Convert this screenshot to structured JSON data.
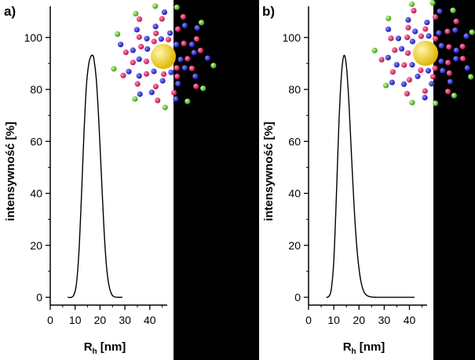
{
  "chart_data": [
    {
      "type": "line",
      "panel_label": "a)",
      "xlabel_main": "R",
      "xlabel_sub": "h",
      "xlabel_unit": " [nm]",
      "ylabel": "intensywność [%]",
      "xlim": [
        0,
        47
      ],
      "ylim": [
        -3,
        112
      ],
      "xticks": [
        0,
        10,
        20,
        30,
        40
      ],
      "yticks": [
        0,
        20,
        40,
        60,
        80,
        100
      ],
      "grid": false,
      "series": [
        {
          "x": [
            7.0,
            8.5,
            9.5,
            10.5,
            11.5,
            12.5,
            13.5,
            14.5,
            15.5,
            16.5,
            17.0,
            17.5,
            18.5,
            19.5,
            20.5,
            21.5,
            22.5,
            23.5,
            24.5,
            25.5,
            27.0,
            29.0
          ],
          "y": [
            0,
            0,
            1,
            5,
            17,
            38,
            62,
            81,
            90,
            93,
            93,
            92,
            84,
            68,
            48,
            28,
            13,
            5,
            1.5,
            0.3,
            0,
            0
          ]
        }
      ],
      "decoration": "star-polymer-illustration"
    },
    {
      "type": "line",
      "panel_label": "b)",
      "xlabel_main": "R",
      "xlabel_sub": "h",
      "xlabel_unit": " [nm]",
      "ylabel": "intensywność [%]",
      "xlim": [
        0,
        47
      ],
      "ylim": [
        -3,
        112
      ],
      "xticks": [
        0,
        10,
        20,
        30,
        40
      ],
      "yticks": [
        0,
        20,
        40,
        60,
        80,
        100
      ],
      "grid": false,
      "series": [
        {
          "x": [
            7.0,
            8.0,
            9.0,
            10.0,
            11.0,
            12.0,
            13.0,
            14.0,
            15.0,
            16.0,
            17.0,
            18.0,
            19.0,
            20.0,
            21.0,
            22.0,
            23.0,
            24.5,
            27.0,
            32.0,
            42.0
          ],
          "y": [
            0,
            0.3,
            3,
            14,
            38,
            66,
            85,
            93,
            89,
            75,
            55,
            36,
            21,
            11,
            5,
            2,
            0.8,
            0.2,
            0,
            0,
            0
          ]
        }
      ],
      "decoration": "star-polymer-illustration"
    }
  ]
}
